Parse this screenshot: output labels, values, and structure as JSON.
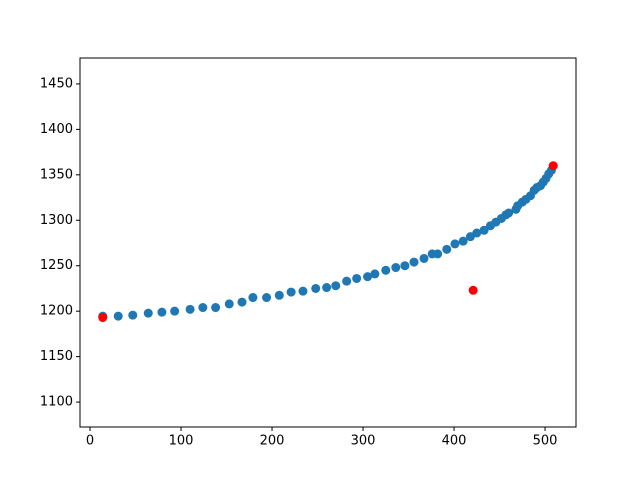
{
  "chart_data": {
    "type": "scatter",
    "series": [
      {
        "color": "#1f77b4",
        "x": [
          14,
          31,
          47,
          64,
          79,
          93,
          110,
          124,
          138,
          153,
          167,
          179,
          194,
          208,
          221,
          234,
          248,
          260,
          270,
          282,
          293,
          305,
          313,
          325,
          336,
          346,
          356,
          367,
          376,
          382,
          392,
          401,
          410,
          418,
          425,
          433,
          440,
          446,
          452,
          457,
          460,
          468,
          470,
          475,
          479,
          484,
          488,
          491,
          495,
          498,
          501,
          504,
          507
        ],
        "y": [
          1194.5,
          1194.5,
          1195.6,
          1197.8,
          1198.9,
          1200,
          1202,
          1204,
          1204,
          1208,
          1210,
          1215,
          1215,
          1217.5,
          1221,
          1222,
          1225,
          1226,
          1228,
          1233,
          1236,
          1238,
          1241,
          1245,
          1248,
          1250,
          1254,
          1258,
          1263,
          1263,
          1268,
          1274,
          1277,
          1282,
          1286,
          1289,
          1294,
          1298,
          1302,
          1306,
          1308,
          1312,
          1316,
          1320,
          1323,
          1327,
          1333,
          1336,
          1338,
          1342,
          1346,
          1351,
          1355
        ]
      },
      {
        "color": "#ff0000",
        "x": [
          14,
          421,
          509
        ],
        "y": [
          1193,
          1223,
          1360
        ]
      }
    ],
    "xlim": [
      -11,
      534
    ],
    "xticks": [
      0,
      100,
      200,
      300,
      400,
      500
    ],
    "ylim": [
      1072.6,
      1478.5
    ],
    "yticks": [
      1100,
      1150,
      1200,
      1250,
      1300,
      1350,
      1400,
      1450
    ],
    "grid": false
  }
}
